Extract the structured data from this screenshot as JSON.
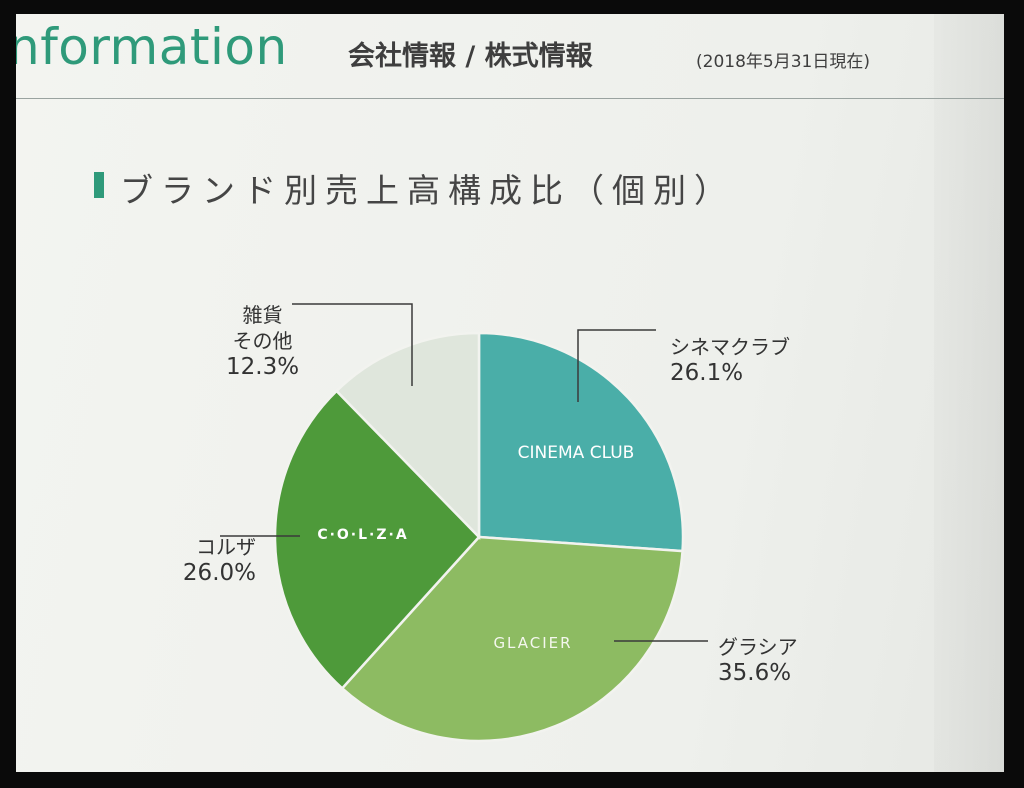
{
  "header": {
    "brand": "nformation",
    "section_title": "会社情報 / 株式情報",
    "as_of": "(2018年5月31日現在)"
  },
  "chart_data": {
    "type": "pie",
    "title": "ブランド別売上高構成比（個別）",
    "slices": [
      {
        "name": "シネマクラブ",
        "logo": "CINEMA CLUB",
        "value": 26.1,
        "percent_label": "26.1%",
        "color": "#4aaea8"
      },
      {
        "name": "グラシア",
        "logo": "GLACIER",
        "value": 35.6,
        "percent_label": "35.6%",
        "color": "#8dbb62"
      },
      {
        "name": "コルザ",
        "logo": "C·O·L·Z·A",
        "value": 26.0,
        "percent_label": "26.0%",
        "color": "#4e9a3a"
      },
      {
        "name_line1": "雑貨",
        "name_line2": "その他",
        "value": 12.3,
        "percent_label": "12.3%",
        "color": "#dfe6dc"
      }
    ],
    "start": "12 o'clock",
    "direction": "clockwise"
  },
  "colors": {
    "brand_green": "#2f9a7a",
    "text": "#333333"
  }
}
